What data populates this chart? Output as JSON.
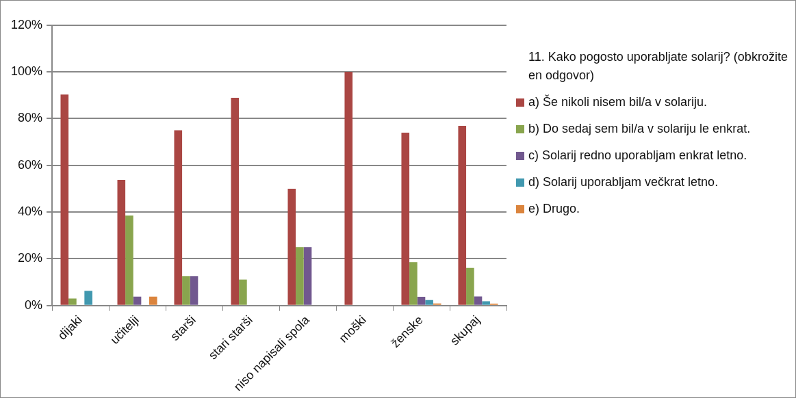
{
  "chart_data": {
    "type": "bar",
    "legend_title": "11. Kako pogosto uporabljate solarij? (obkrožite en odgovor)",
    "categories": [
      "dijaki",
      "učitelji",
      "starši",
      "stari starši",
      "niso napisali spola",
      "moški",
      "ženske",
      "skupaj"
    ],
    "series": [
      {
        "name": "a) Še nikoli nisem bil/a v solariju.",
        "color": "#aa4643",
        "values": [
          90.3,
          53.8,
          75,
          88.9,
          50,
          100,
          74,
          76.9
        ]
      },
      {
        "name": "b) Do sedaj sem bil/a v solariju le enkrat.",
        "color": "#89a54e",
        "values": [
          3,
          38.5,
          12.5,
          11.1,
          25,
          0,
          18.6,
          16.1
        ]
      },
      {
        "name": "c) Solarij redno uporabljam enkrat letno.",
        "color": "#71588f",
        "values": [
          0,
          3.8,
          12.5,
          0,
          25,
          0,
          3.7,
          3.9
        ]
      },
      {
        "name": "d) Solarij uporabljam večkrat letno.",
        "color": "#4198af",
        "values": [
          6.3,
          0,
          0,
          0,
          0,
          0,
          2.3,
          1.8
        ]
      },
      {
        "name": "e) Drugo.",
        "color": "#db843d",
        "values": [
          0,
          3.8,
          0,
          0,
          0,
          0,
          0.9,
          0.8
        ]
      }
    ],
    "ylim": [
      0,
      120
    ],
    "yticks": [
      {
        "value": 0,
        "label": "0%"
      },
      {
        "value": 20,
        "label": "20%"
      },
      {
        "value": 40,
        "label": "40%"
      },
      {
        "value": 60,
        "label": "60%"
      },
      {
        "value": 80,
        "label": "80%"
      },
      {
        "value": 100,
        "label": "100%"
      },
      {
        "value": 120,
        "label": "120%"
      }
    ],
    "grid": "y",
    "legend": "right"
  }
}
